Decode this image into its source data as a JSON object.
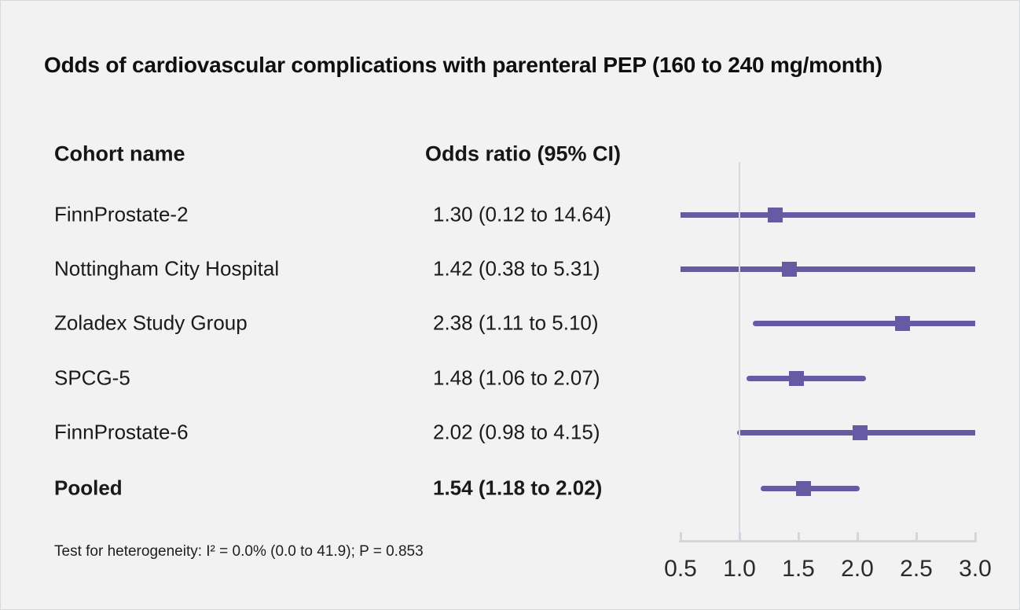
{
  "title": "Odds of cardiovascular complications with parenteral PEP (160 to 240 mg/month)",
  "table": {
    "cohort_header": "Cohort name",
    "odds_header": "Odds ratio (95% CI)"
  },
  "footnote": "Test for heterogeneity: I² = 0.0% (0.0 to 41.9); P = 0.853",
  "colors": {
    "background": "#f2f2f2",
    "marker": "#675aa5",
    "ci_line": "#675aa5",
    "axis": "#d2d6de",
    "reference_line": "#d6d9e0",
    "text": "#161616"
  },
  "chart_data": {
    "type": "forest",
    "title": "Odds of cardiovascular complications with parenteral PEP (160 to 240 mg/month)",
    "x_ticks": [
      0.5,
      1.0,
      1.5,
      2.0,
      2.5,
      3.0
    ],
    "x_range": [
      0.5,
      3.0
    ],
    "reference_value": 1.0,
    "legend": null,
    "rows": [
      {
        "name": "FinnProstate-2",
        "or_text": "1.30 (0.12 to 14.64)",
        "estimate": 1.3,
        "ci_low": 0.12,
        "ci_high": 14.64,
        "bold": false
      },
      {
        "name": "Nottingham City Hospital",
        "or_text": "1.42 (0.38 to 5.31)",
        "estimate": 1.42,
        "ci_low": 0.38,
        "ci_high": 5.31,
        "bold": false
      },
      {
        "name": "Zoladex Study Group",
        "or_text": "2.38 (1.11 to 5.10)",
        "estimate": 2.38,
        "ci_low": 1.11,
        "ci_high": 5.1,
        "bold": false
      },
      {
        "name": "SPCG-5",
        "or_text": "1.48 (1.06 to 2.07)",
        "estimate": 1.48,
        "ci_low": 1.06,
        "ci_high": 2.07,
        "bold": false
      },
      {
        "name": "FinnProstate-6",
        "or_text": "2.02 (0.98 to 4.15)",
        "estimate": 2.02,
        "ci_low": 0.98,
        "ci_high": 4.15,
        "bold": false
      },
      {
        "name": "Pooled",
        "or_text": "1.54 (1.18 to 2.02)",
        "estimate": 1.54,
        "ci_low": 1.18,
        "ci_high": 2.02,
        "bold": true
      }
    ]
  }
}
